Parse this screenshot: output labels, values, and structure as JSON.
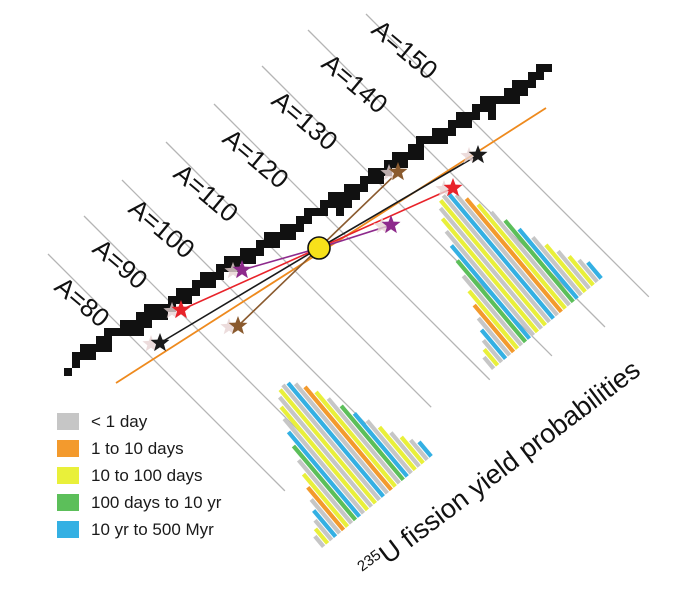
{
  "mass_lines": [
    {
      "label": "A=80"
    },
    {
      "label": "A=90"
    },
    {
      "label": "A=100"
    },
    {
      "label": "A=110"
    },
    {
      "label": "A=120"
    },
    {
      "label": "A=130"
    },
    {
      "label": "A=140"
    },
    {
      "label": "A=150"
    }
  ],
  "legend": [
    {
      "label": "< 1 day",
      "color": "#c6c6c6"
    },
    {
      "label": "1 to 10 days",
      "color": "#f39a2d"
    },
    {
      "label": "10 to 100 days",
      "color": "#e9f03a"
    },
    {
      "label": "100 days to 10 yr",
      "color": "#5cbf5a"
    },
    {
      "label": "10 yr to 500 Myr",
      "color": "#34b0e3"
    }
  ],
  "fission_label": {
    "superscript": "235",
    "text": "U fission yield probabilities"
  },
  "colors": {
    "black_star": "#1a1a1a",
    "red_star": "#e8232a",
    "purple_star": "#8e2a8c",
    "brown_star": "#8a5a2e",
    "valley_line": "#ee8a1e",
    "nucleus": "#f7e11a"
  }
}
